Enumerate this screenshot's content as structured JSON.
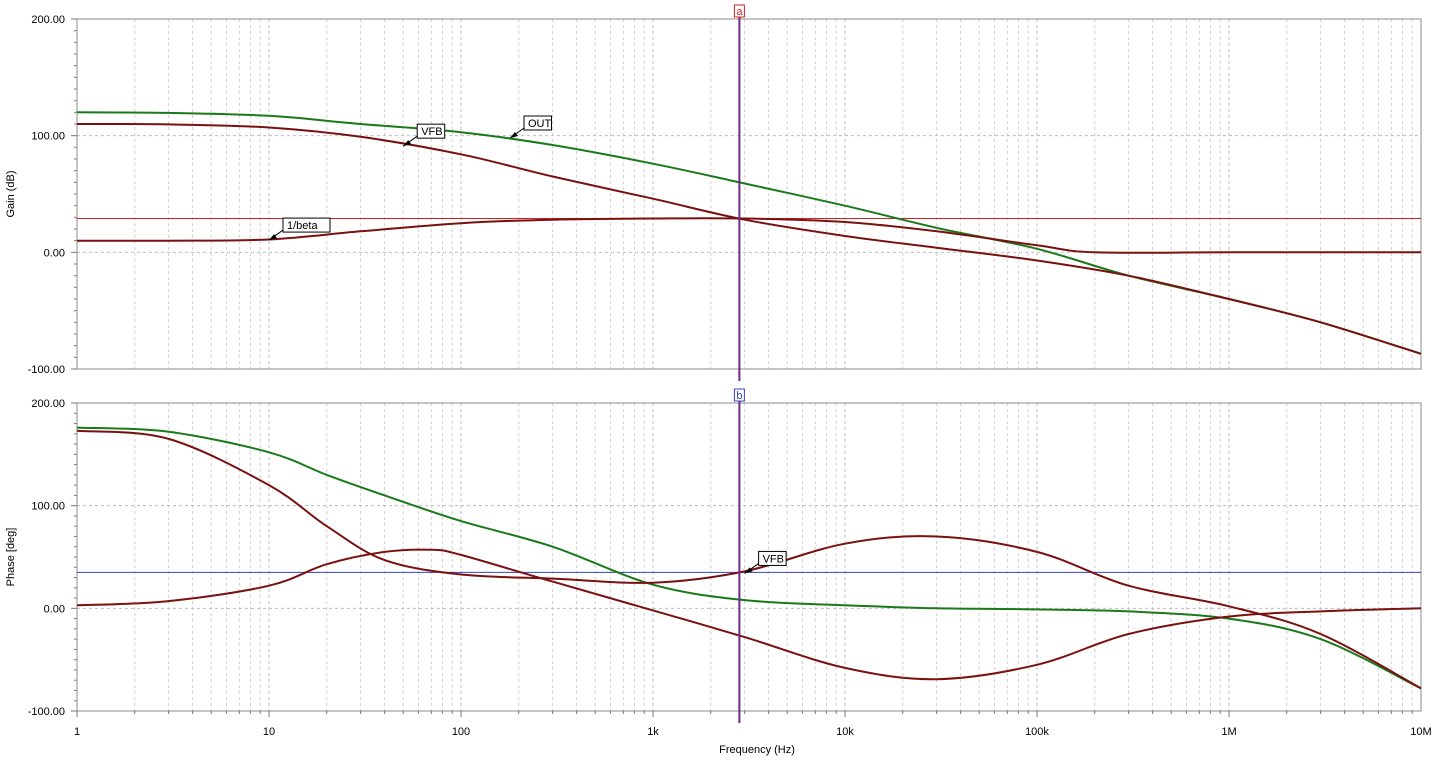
{
  "chart_data": [
    {
      "type": "line",
      "id": "gain",
      "ylabel": "Gain (dB)",
      "xscale": "log",
      "xlim": [
        1,
        10000000
      ],
      "ylim": [
        -100,
        200
      ],
      "yticks": [
        {
          "v": 200,
          "label": "200.00"
        },
        {
          "v": 100,
          "label": "100.00"
        },
        {
          "v": 0,
          "label": "0.00"
        },
        {
          "v": -100,
          "label": "-100.00"
        }
      ],
      "grid": true,
      "cursor": {
        "label": "a",
        "x": 2818,
        "color": "#cc2222"
      },
      "hline": {
        "y": 29,
        "color": "#cc2222"
      },
      "series": [
        {
          "name": "OUT",
          "color": "#1a7a1a",
          "x": [
            1,
            3,
            10,
            30,
            100,
            300,
            1000,
            3000,
            10000,
            30000,
            100000,
            300000,
            1000000,
            3000000,
            10000000
          ],
          "y": [
            120,
            119.5,
            117,
            110,
            103,
            92,
            76,
            59,
            40,
            21,
            3,
            -20,
            -40,
            -60,
            -87
          ]
        },
        {
          "name": "VFB",
          "color": "#7a1010",
          "x": [
            1,
            3,
            10,
            30,
            100,
            300,
            1000,
            3000,
            10000,
            30000,
            100000,
            300000,
            1000000,
            3000000,
            10000000
          ],
          "y": [
            110,
            109.7,
            107,
            99,
            84,
            65,
            46,
            28,
            14,
            4,
            -7,
            -20,
            -40,
            -60,
            -87
          ]
        },
        {
          "name": "1/beta",
          "color": "#7a1010",
          "x": [
            1,
            3,
            10,
            30,
            100,
            300,
            1000,
            3000,
            10000,
            30000,
            100000,
            200000,
            1000000,
            10000000
          ],
          "y": [
            10,
            10,
            11,
            18,
            25,
            28,
            29,
            29,
            26,
            18,
            6,
            0,
            0,
            0
          ]
        }
      ],
      "labels": [
        {
          "text": "OUT",
          "series": "OUT",
          "x": 180,
          "y": 98
        },
        {
          "text": "VFB",
          "series": "VFB",
          "x": 50,
          "y": 91
        },
        {
          "text": "1/beta",
          "series": "1/beta",
          "x": 10,
          "y": 10.5
        }
      ]
    },
    {
      "type": "line",
      "id": "phase",
      "ylabel": "Phase [deg]",
      "xlabel": "Frequency (Hz)",
      "xscale": "log",
      "xlim": [
        1,
        10000000
      ],
      "ylim": [
        -100,
        200
      ],
      "yticks": [
        {
          "v": 200,
          "label": "200.00"
        },
        {
          "v": 100,
          "label": "100.00"
        },
        {
          "v": 0,
          "label": "0.00"
        },
        {
          "v": -100,
          "label": "-100.00"
        }
      ],
      "xticks": [
        {
          "v": 1,
          "label": "1"
        },
        {
          "v": 10,
          "label": "10"
        },
        {
          "v": 100,
          "label": "100"
        },
        {
          "v": 1000,
          "label": "1k"
        },
        {
          "v": 10000,
          "label": "10k"
        },
        {
          "v": 100000,
          "label": "100k"
        },
        {
          "v": 1000000,
          "label": "1M"
        },
        {
          "v": 10000000,
          "label": "10M"
        }
      ],
      "grid": true,
      "cursor": {
        "label": "b",
        "x": 2818,
        "color": "#3344bb"
      },
      "hline": {
        "y": 35,
        "color": "#3344bb"
      },
      "series": [
        {
          "name": "OUT",
          "color": "#1a7a1a",
          "x": [
            1,
            3,
            10,
            20,
            40,
            100,
            300,
            1000,
            3000,
            10000,
            30000,
            100000,
            300000,
            1000000,
            3000000,
            10000000
          ],
          "y": [
            176,
            172,
            152,
            130,
            110,
            85,
            60,
            23,
            8,
            3,
            0,
            -1,
            -3,
            -10,
            -30,
            -78
          ]
        },
        {
          "name": "VFB",
          "color": "#7a1010",
          "x": [
            1,
            3,
            10,
            20,
            40,
            100,
            300,
            1000,
            3000,
            10000,
            30000,
            100000,
            300000,
            1000000,
            3000000,
            10000000
          ],
          "y": [
            173,
            165,
            120,
            80,
            47,
            33,
            29,
            25,
            36,
            63,
            70,
            55,
            22,
            2,
            -25,
            -78
          ]
        },
        {
          "name": "1/beta",
          "color": "#7a1010",
          "x": [
            1,
            3,
            10,
            20,
            40,
            70,
            100,
            300,
            1000,
            3000,
            10000,
            30000,
            100000,
            300000,
            1000000,
            3000000,
            10000000
          ],
          "y": [
            3,
            7,
            22,
            43,
            55,
            57,
            52,
            26,
            -2,
            -28,
            -58,
            -69,
            -55,
            -25,
            -8,
            -3,
            0
          ]
        }
      ],
      "labels": [
        {
          "text": "VFB",
          "series": "VFB",
          "x": 3000,
          "y": 34
        }
      ]
    }
  ]
}
